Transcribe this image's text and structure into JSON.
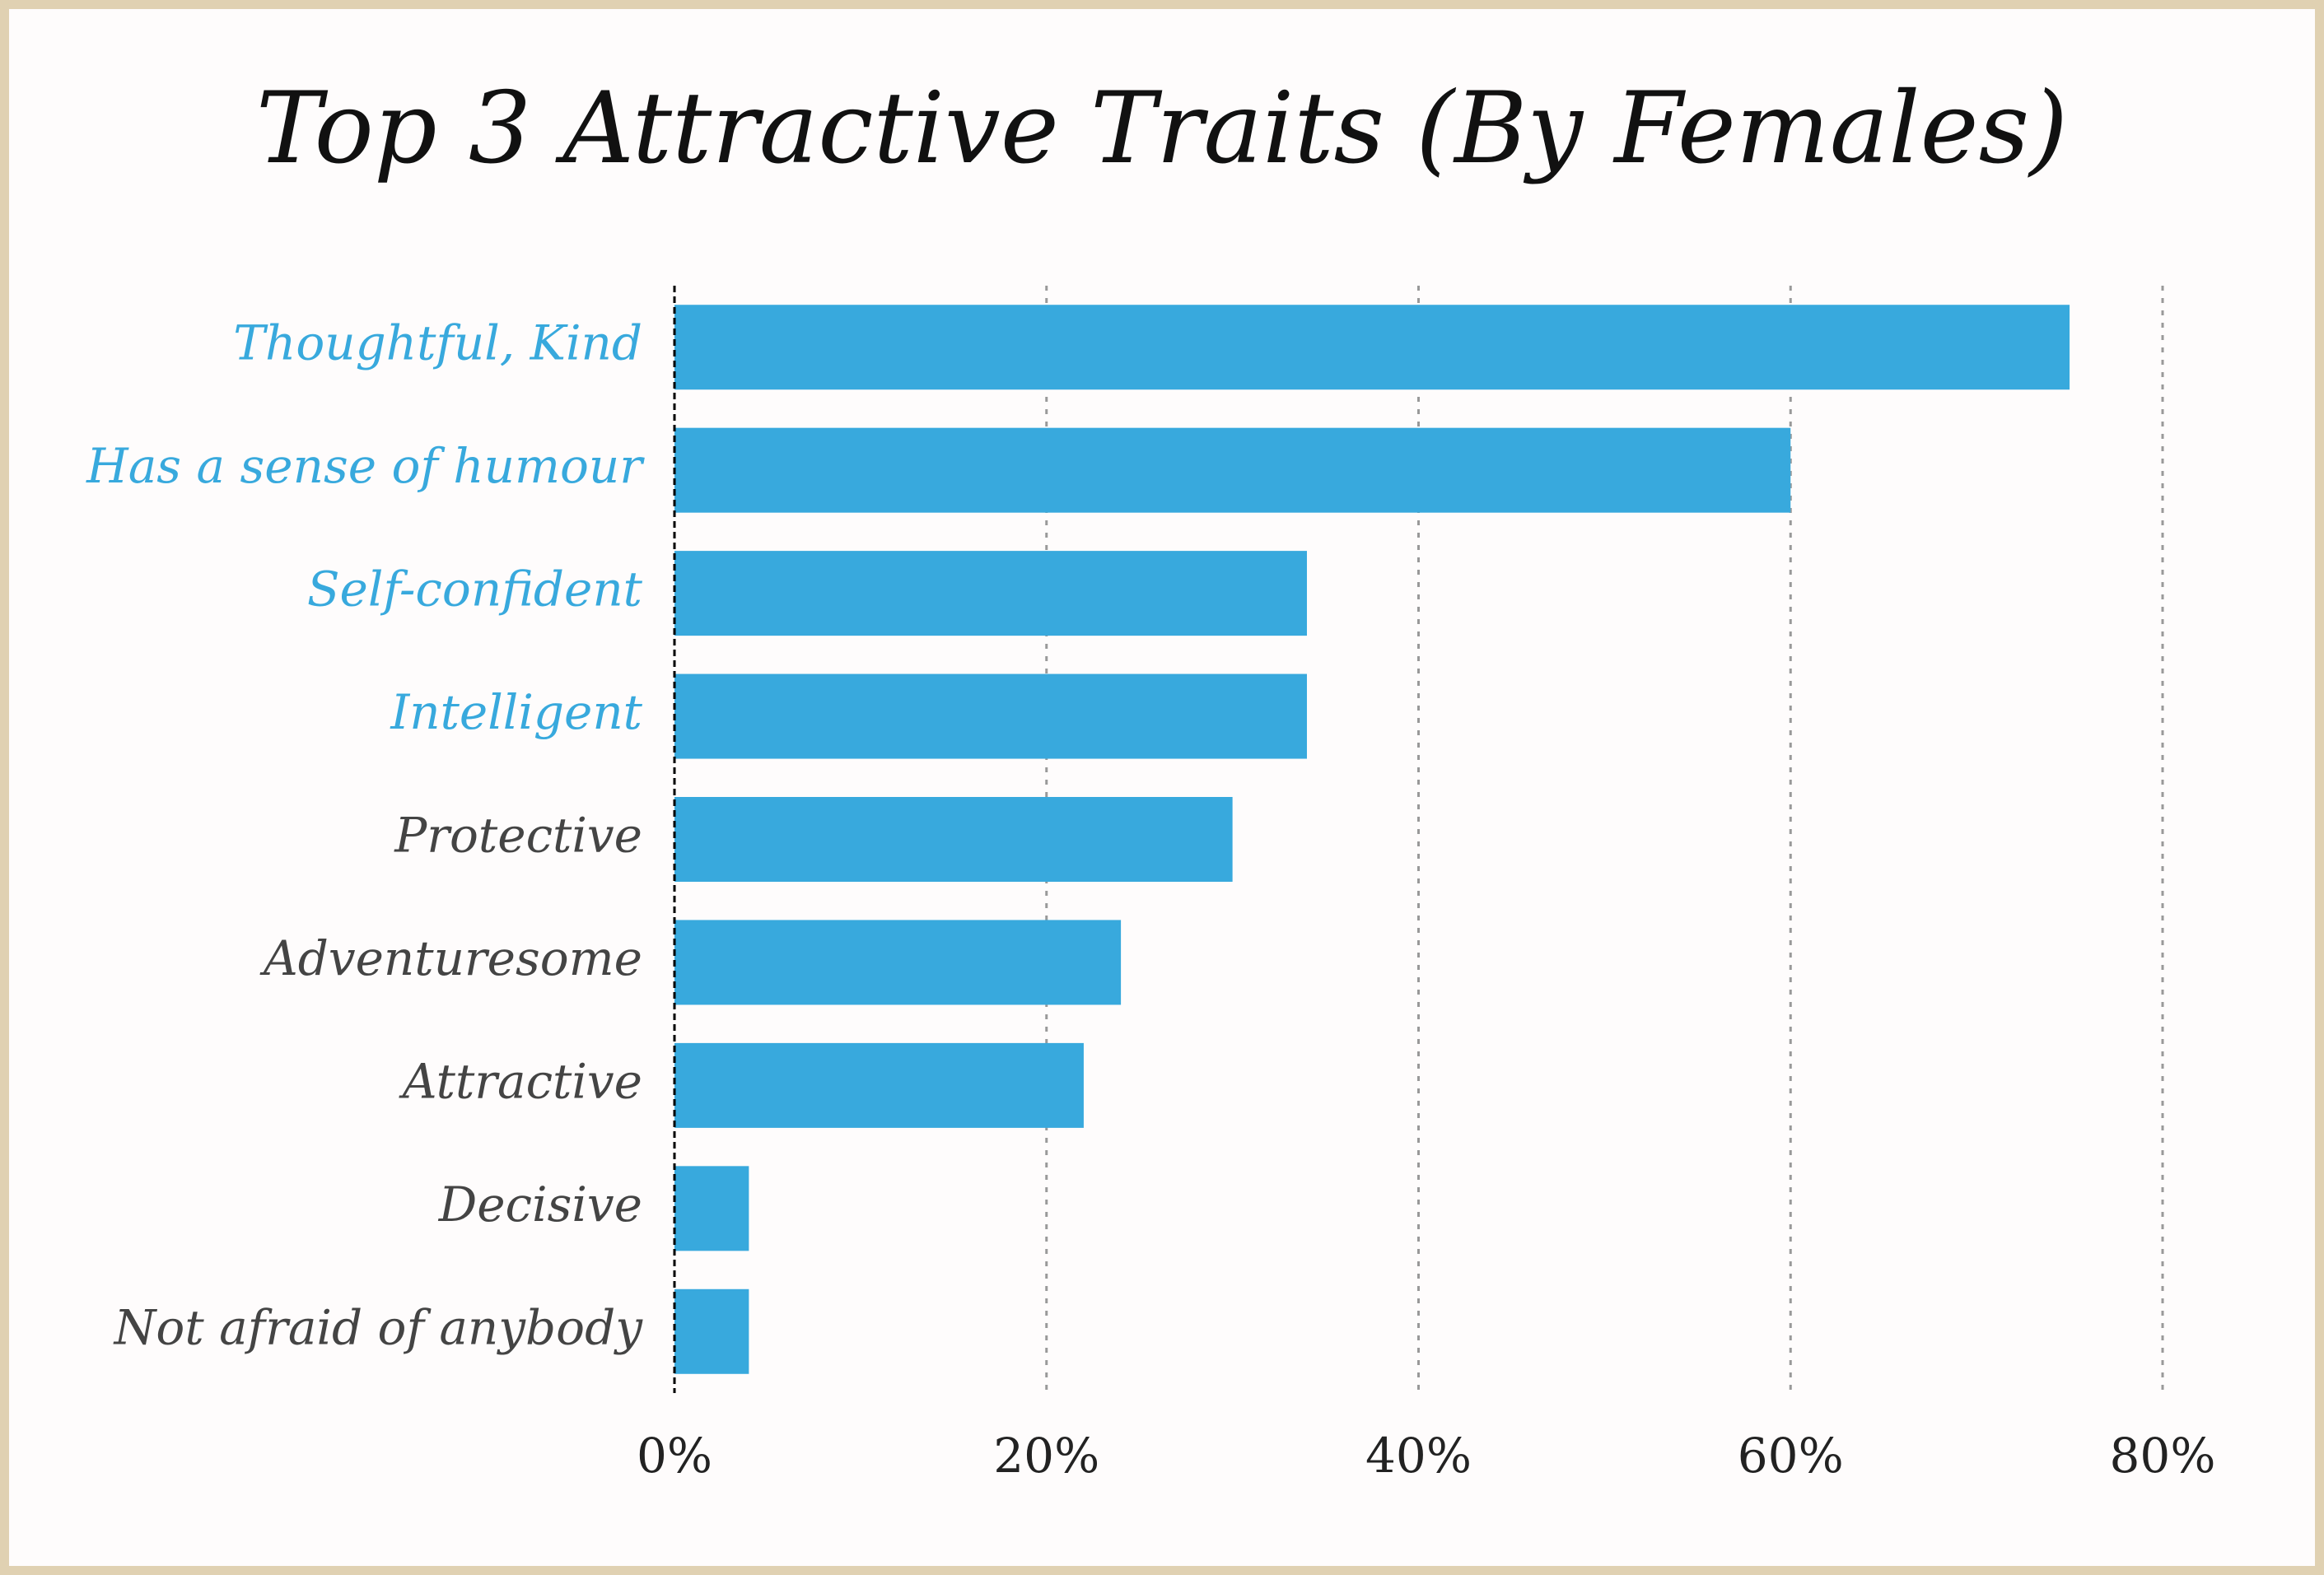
{
  "chart_data": {
    "type": "bar",
    "orientation": "horizontal",
    "title": "Top 3 Attractive Traits (By Females)",
    "categories": [
      "Thoughtful, Kind",
      "Has a sense of humour",
      "Self-confident",
      "Intelligent",
      "Protective",
      "Adventuresome",
      "Attractive",
      "Decisive",
      "Not afraid of anybody"
    ],
    "values": [
      75,
      60,
      34,
      34,
      30,
      24,
      22,
      4,
      4
    ],
    "color": "#38a9dd",
    "label_colors": [
      "#38a9dd",
      "#38a9dd",
      "#38a9dd",
      "#38a9dd",
      "#444444",
      "#444444",
      "#444444",
      "#444444",
      "#444444"
    ],
    "xlim": [
      0,
      80
    ],
    "xticks": [
      {
        "value": 0,
        "label": "0%"
      },
      {
        "value": 20,
        "label": "20%"
      },
      {
        "value": 40,
        "label": "40%"
      },
      {
        "value": 60,
        "label": "60%"
      },
      {
        "value": 80,
        "label": "80%"
      }
    ],
    "grid": true
  }
}
